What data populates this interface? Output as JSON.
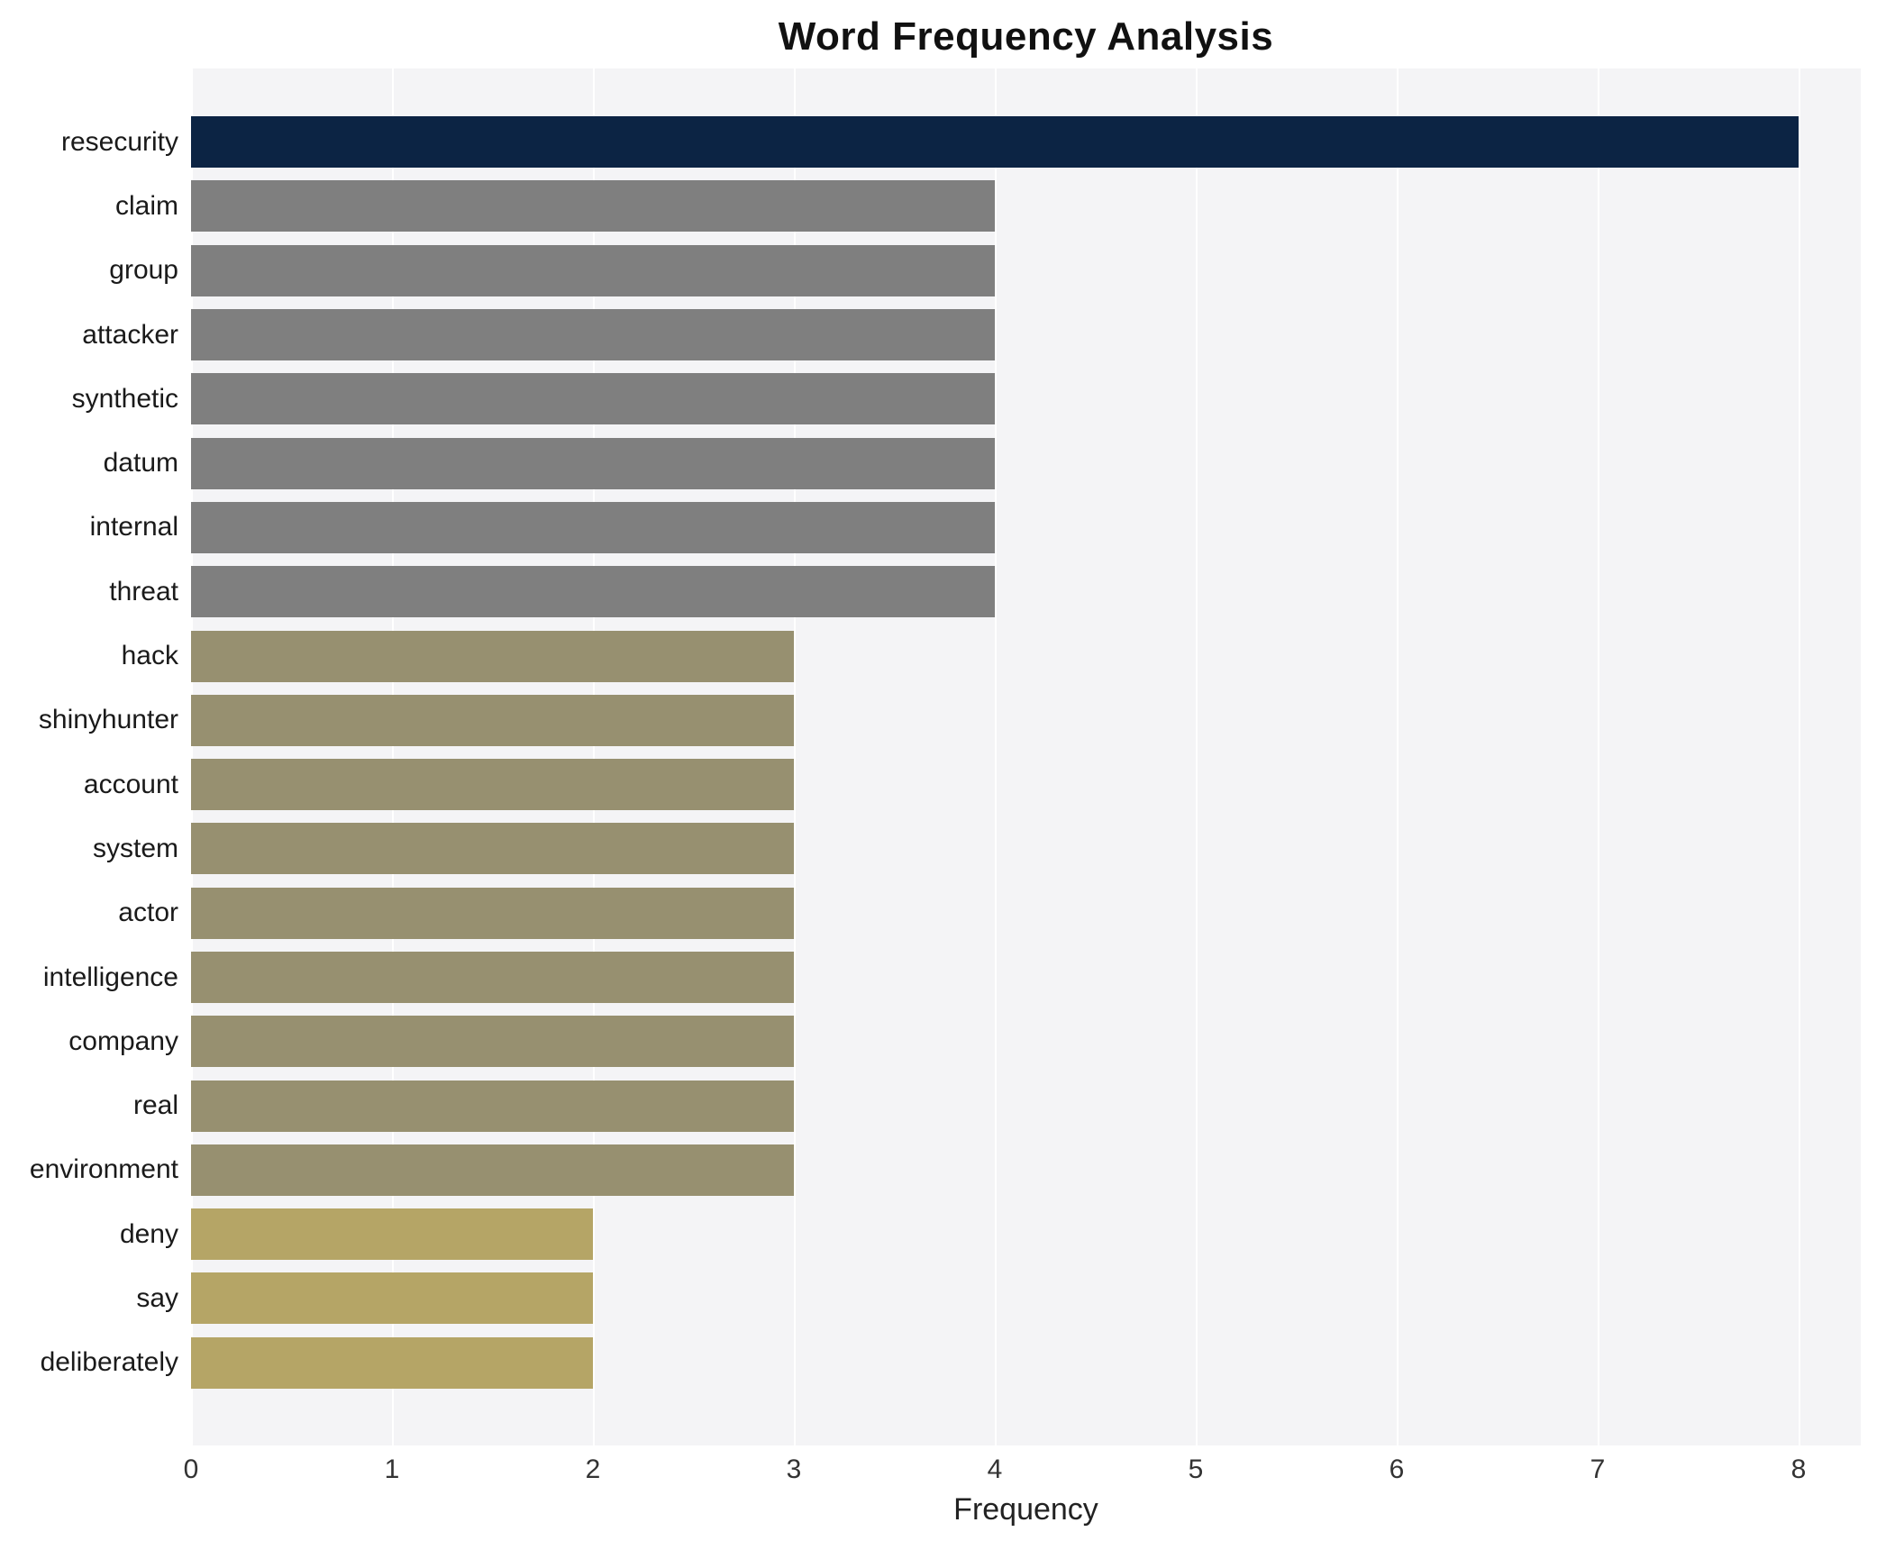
{
  "chart_data": {
    "type": "bar",
    "orientation": "horizontal",
    "title": "Word Frequency Analysis",
    "xlabel": "Frequency",
    "ylabel": "",
    "xlim": [
      0,
      8
    ],
    "xticks": [
      0,
      1,
      2,
      3,
      4,
      5,
      6,
      7,
      8
    ],
    "grid": true,
    "legend": false,
    "categories": [
      "resecurity",
      "claim",
      "group",
      "attacker",
      "synthetic",
      "datum",
      "internal",
      "threat",
      "hack",
      "shinyhunter",
      "account",
      "system",
      "actor",
      "intelligence",
      "company",
      "real",
      "environment",
      "deny",
      "say",
      "deliberately"
    ],
    "values": [
      8,
      4,
      4,
      4,
      4,
      4,
      4,
      4,
      3,
      3,
      3,
      3,
      3,
      3,
      3,
      3,
      3,
      2,
      2,
      2
    ],
    "bar_colors": [
      "#0c2444",
      "#7f7f7f",
      "#7f7f7f",
      "#7f7f7f",
      "#7f7f7f",
      "#7f7f7f",
      "#7f7f7f",
      "#7f7f7f",
      "#979070",
      "#979070",
      "#979070",
      "#979070",
      "#979070",
      "#979070",
      "#979070",
      "#979070",
      "#979070",
      "#b5a566",
      "#b5a566",
      "#b5a566"
    ]
  },
  "colors": {
    "plot_background": "#f4f4f6",
    "page_background": "#ffffff",
    "gridline": "#ffffff",
    "title_text": "#111111",
    "label_text": "#1a1a1a",
    "tick_text": "#333333"
  }
}
